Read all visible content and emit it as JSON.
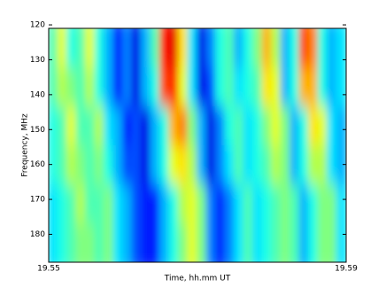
{
  "chart_data": {
    "type": "heatmap",
    "xlabel": "Time, hh.mm UT",
    "ylabel": "Frequency, MHz",
    "xlim": [
      19.55,
      19.59
    ],
    "xticks": [
      19.55,
      19.59
    ],
    "ylim": [
      188,
      121
    ],
    "yticks": [
      120,
      130,
      140,
      150,
      160,
      170,
      180
    ],
    "colormap": "jet",
    "zlim": [
      0,
      1
    ],
    "z": [
      [
        0.45,
        0.6,
        0.4,
        0.45,
        0.6,
        0.4,
        0.3,
        0.15,
        0.25,
        0.1,
        0.3,
        0.45,
        0.85,
        0.9,
        0.65,
        0.35,
        0.1,
        0.25,
        0.4,
        0.45,
        0.3,
        0.4,
        0.5,
        0.7,
        0.55,
        0.3,
        0.4,
        0.8,
        0.75,
        0.4,
        0.3,
        0.35
      ],
      [
        0.45,
        0.55,
        0.5,
        0.45,
        0.55,
        0.4,
        0.3,
        0.15,
        0.25,
        0.1,
        0.3,
        0.4,
        0.8,
        0.85,
        0.6,
        0.35,
        0.1,
        0.2,
        0.4,
        0.45,
        0.35,
        0.4,
        0.45,
        0.65,
        0.6,
        0.3,
        0.4,
        0.7,
        0.7,
        0.4,
        0.3,
        0.35
      ],
      [
        0.4,
        0.45,
        0.6,
        0.45,
        0.45,
        0.55,
        0.35,
        0.3,
        0.15,
        0.2,
        0.1,
        0.3,
        0.4,
        0.7,
        0.75,
        0.5,
        0.3,
        0.1,
        0.25,
        0.4,
        0.45,
        0.35,
        0.4,
        0.5,
        0.6,
        0.5,
        0.3,
        0.4,
        0.65,
        0.6,
        0.35,
        0.3
      ],
      [
        0.4,
        0.45,
        0.55,
        0.5,
        0.45,
        0.5,
        0.4,
        0.3,
        0.2,
        0.2,
        0.1,
        0.3,
        0.4,
        0.6,
        0.65,
        0.55,
        0.3,
        0.1,
        0.25,
        0.35,
        0.45,
        0.35,
        0.4,
        0.45,
        0.55,
        0.5,
        0.3,
        0.4,
        0.55,
        0.55,
        0.35,
        0.3
      ],
      [
        0.35,
        0.4,
        0.45,
        0.55,
        0.45,
        0.45,
        0.5,
        0.35,
        0.3,
        0.2,
        0.15,
        0.15,
        0.3,
        0.4,
        0.55,
        0.6,
        0.5,
        0.25,
        0.15,
        0.25,
        0.35,
        0.45,
        0.35,
        0.4,
        0.45,
        0.5,
        0.45,
        0.3,
        0.4,
        0.5,
        0.5,
        0.35
      ],
      [
        0.35,
        0.4,
        0.45,
        0.5,
        0.5,
        0.45,
        0.5,
        0.35,
        0.3,
        0.2,
        0.15,
        0.15,
        0.3,
        0.4,
        0.5,
        0.6,
        0.5,
        0.25,
        0.15,
        0.25,
        0.35,
        0.45,
        0.35,
        0.4,
        0.45,
        0.5,
        0.45,
        0.3,
        0.4,
        0.5,
        0.5,
        0.35
      ]
    ]
  }
}
